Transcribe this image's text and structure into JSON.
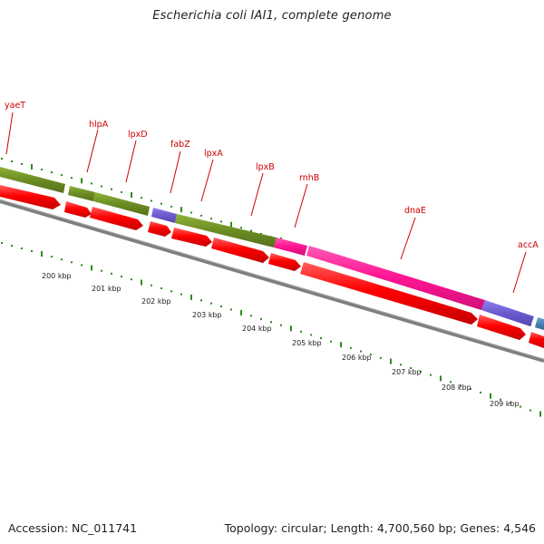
{
  "title": "Escherichia coli IAI1, complete genome",
  "accession": "Accession: NC_011741",
  "stats": "Topology: circular; Length: 4,700,560 bp; Genes: 4,546",
  "colors": {
    "gene_green": "#6b8c23",
    "gene_purple": "#6a5acd",
    "gene_pink": "#ff1493",
    "gene_blue": "#4682b4",
    "cds_red": "#ff0000",
    "backbone": "#7f7f7f",
    "tick_green": "#2e8b1f",
    "label_red": "#cc0000"
  },
  "gene_labels": [
    "yaeT",
    "hlpA",
    "lpxD",
    "fabZ",
    "lpxA",
    "lpxB",
    "rnhB",
    "dnaE",
    "accA"
  ],
  "scale_labels": [
    "200 kbp",
    "201 kbp",
    "202 kbp",
    "203 kbp",
    "204 kbp",
    "205 kbp",
    "206 kbp",
    "207 kbp",
    "208 kbp",
    "209 kbp"
  ]
}
